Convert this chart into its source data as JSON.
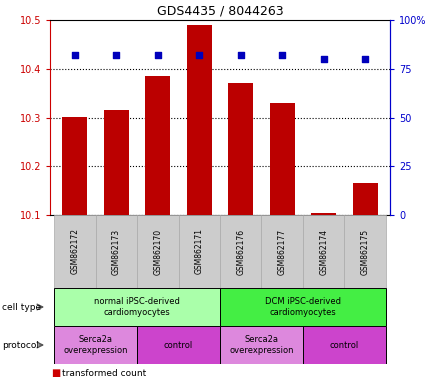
{
  "title": "GDS4435 / 8044263",
  "samples": [
    "GSM862172",
    "GSM862173",
    "GSM862170",
    "GSM862171",
    "GSM862176",
    "GSM862177",
    "GSM862174",
    "GSM862175"
  ],
  "bar_values": [
    10.3,
    10.315,
    10.385,
    10.49,
    10.37,
    10.33,
    10.105,
    10.165
  ],
  "percentile_values": [
    82,
    82,
    82,
    82,
    82,
    82,
    80,
    80
  ],
  "ylim_left": [
    10.1,
    10.5
  ],
  "ylim_right": [
    0,
    100
  ],
  "yticks_left": [
    10.1,
    10.2,
    10.3,
    10.4,
    10.5
  ],
  "yticks_right": [
    0,
    25,
    50,
    75,
    100
  ],
  "yticklabels_right": [
    "0",
    "25",
    "50",
    "75",
    "100%"
  ],
  "bar_color": "#bb0000",
  "dot_color": "#0000bb",
  "cell_type_groups": [
    {
      "label": "normal iPSC-derived\ncardiomyocytes",
      "start": 0,
      "end": 3,
      "color": "#aaffaa"
    },
    {
      "label": "DCM iPSC-derived\ncardiomyocytes",
      "start": 4,
      "end": 7,
      "color": "#44ee44"
    }
  ],
  "protocol_groups": [
    {
      "label": "Serca2a\noverexpression",
      "start": 0,
      "end": 1,
      "color": "#dd88dd"
    },
    {
      "label": "control",
      "start": 2,
      "end": 3,
      "color": "#cc44cc"
    },
    {
      "label": "Serca2a\noverexpression",
      "start": 4,
      "end": 5,
      "color": "#dd88dd"
    },
    {
      "label": "control",
      "start": 6,
      "end": 7,
      "color": "#cc44cc"
    }
  ],
  "bg_color": "#ffffff",
  "tick_color_left": "#cc0000",
  "tick_color_right": "#0000cc",
  "sample_box_color": "#cccccc",
  "sample_box_edge": "#aaaaaa",
  "legend_red": "#cc0000",
  "legend_blue": "#0000cc"
}
